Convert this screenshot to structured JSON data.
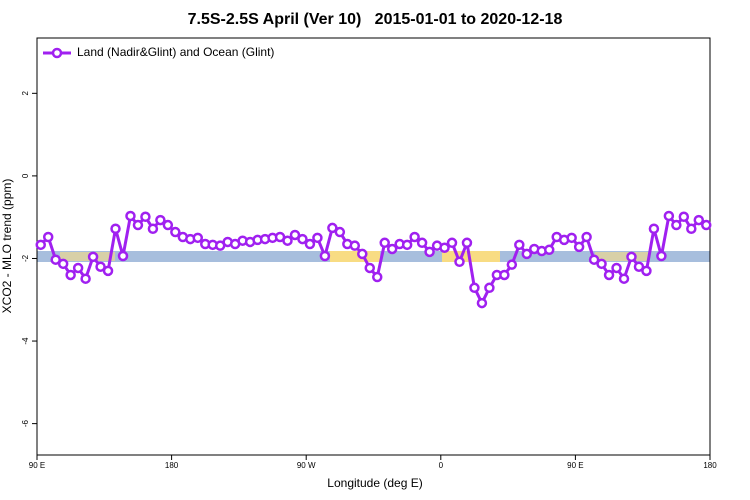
{
  "chart_data": {
    "type": "line",
    "title": "7.5S-2.5S April (Ver 10)   2015-01-01 to 2020-12-18",
    "x_label": "Longitude (deg E)",
    "y_label": "XCO2 - MLO trend (ppm)",
    "x": [
      92.5,
      97.5,
      102.5,
      107.5,
      112.5,
      117.5,
      122.5,
      127.5,
      132.5,
      137.5,
      142.5,
      147.5,
      152.5,
      157.5,
      162.5,
      167.5,
      172.5,
      177.5,
      182.5,
      187.5,
      192.5,
      197.5,
      202.5,
      207.5,
      212.5,
      217.5,
      222.5,
      227.5,
      232.5,
      237.5,
      242.5,
      247.5,
      252.5,
      257.5,
      262.5,
      267.5,
      272.5,
      277.5,
      282.5,
      287.5,
      292.5,
      297.5,
      302.5,
      307.5,
      312.5,
      317.5,
      322.5,
      327.5,
      332.5,
      337.5,
      342.5,
      347.5,
      352.5,
      357.5,
      362.5,
      367.5,
      372.5,
      377.5,
      382.5,
      387.5,
      392.5,
      397.5,
      402.5,
      407.5,
      412.5,
      417.5,
      422.5,
      427.5,
      432.5,
      437.5,
      442.5,
      447.5,
      452.5,
      457.5,
      462.5,
      467.5,
      472.5,
      477.5,
      482.5,
      487.5,
      492.5,
      497.5,
      502.5,
      507.5,
      512.5,
      517.5,
      522.5,
      527.5,
      532.5,
      537.5
    ],
    "series": [
      {
        "name": "Land (Nadir&Glint) and Ocean (Glint)",
        "color": "#a020f0",
        "values": [
          -1.67,
          -1.48,
          -2.03,
          -2.13,
          -2.4,
          -2.23,
          -2.49,
          -1.96,
          -2.2,
          -2.3,
          -1.28,
          -1.94,
          -0.97,
          -1.19,
          -0.99,
          -1.28,
          -1.07,
          -1.19,
          -1.36,
          -1.48,
          -1.53,
          -1.5,
          -1.65,
          -1.67,
          -1.69,
          -1.6,
          -1.65,
          -1.57,
          -1.6,
          -1.55,
          -1.53,
          -1.5,
          -1.48,
          -1.57,
          -1.43,
          -1.53,
          -1.65,
          -1.5,
          -1.94,
          -1.26,
          -1.36,
          -1.65,
          -1.69,
          -1.89,
          -2.23,
          -2.45,
          -1.62,
          -1.77,
          -1.65,
          -1.67,
          -1.48,
          -1.62,
          -1.84,
          -1.69,
          -1.74,
          -1.62,
          -2.08,
          -1.62,
          -2.71,
          -3.08,
          -2.71,
          -2.4,
          -2.4,
          -2.15,
          -1.67,
          -1.89,
          -1.77,
          -1.82,
          -1.79,
          -1.48,
          -1.55,
          -1.5,
          -1.72,
          -1.48,
          -2.03,
          -2.13,
          -2.4,
          -2.23,
          -2.49,
          -1.96,
          -2.2,
          -2.3,
          -1.28,
          -1.94,
          -0.97,
          -1.19,
          -0.99,
          -1.28,
          -1.07,
          -1.19
        ]
      }
    ],
    "xlim": [
      90,
      540
    ],
    "xticks": [
      {
        "value": 90,
        "label": "90 E"
      },
      180,
      {
        "value": 270,
        "label": "90 W"
      },
      {
        "value": 360,
        "label": "0"
      },
      {
        "value": 450,
        "label": "90 E"
      },
      {
        "value": 540,
        "label": "180"
      }
    ],
    "ylim": [
      -6.76,
      3.34
    ],
    "yticks": [
      2,
      0,
      -2,
      -4,
      -6
    ],
    "legend": "top-left"
  }
}
